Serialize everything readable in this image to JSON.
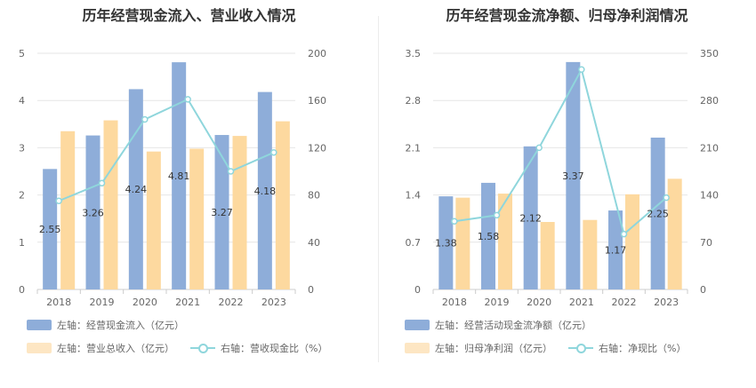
{
  "chart_data": [
    {
      "type": "bar",
      "title": "历年经营现金流入、营业收入情况",
      "categories": [
        "2018",
        "2019",
        "2020",
        "2021",
        "2022",
        "2023"
      ],
      "left_axis": {
        "min": 0,
        "max": 5,
        "ticks": [
          "0",
          "1",
          "2",
          "3",
          "4",
          "5"
        ]
      },
      "right_axis": {
        "min": 0,
        "max": 200,
        "ticks": [
          "0",
          "40",
          "80",
          "120",
          "160",
          "200"
        ]
      },
      "series": [
        {
          "name": "左轴：经营现金流入（亿元）",
          "kind": "bar",
          "axis": "left",
          "color": "#8eadd9",
          "values": [
            2.55,
            3.26,
            4.24,
            4.81,
            3.27,
            4.18
          ],
          "labels": [
            "2.55",
            "3.26",
            "4.24",
            "4.81",
            "3.27",
            "4.18"
          ]
        },
        {
          "name": "左轴：营业总收入（亿元）",
          "kind": "bar",
          "axis": "left",
          "color": "#fdd99f",
          "values": [
            3.35,
            3.58,
            2.92,
            2.98,
            3.25,
            3.56
          ]
        },
        {
          "name": "右轴：营收现金比（%）",
          "kind": "line",
          "axis": "right",
          "color": "#8fd6dc",
          "values": [
            75,
            90,
            144,
            161,
            100,
            116
          ]
        }
      ],
      "grid": true
    },
    {
      "type": "bar",
      "title": "历年经营现金流净额、归母净利润情况",
      "categories": [
        "2018",
        "2019",
        "2020",
        "2021",
        "2022",
        "2023"
      ],
      "left_axis": {
        "min": 0,
        "max": 3.5,
        "ticks": [
          "0",
          "0.7",
          "1.4",
          "2.1",
          "2.8",
          "3.5"
        ]
      },
      "right_axis": {
        "min": 0,
        "max": 350,
        "ticks": [
          "0",
          "70",
          "140",
          "210",
          "280",
          "350"
        ]
      },
      "series": [
        {
          "name": "左轴：经营活动现金流净额（亿元）",
          "kind": "bar",
          "axis": "left",
          "color": "#8eadd9",
          "values": [
            1.38,
            1.58,
            2.12,
            3.37,
            1.17,
            2.25
          ],
          "labels": [
            "1.38",
            "1.58",
            "2.12",
            "3.37",
            "1.17",
            "2.25"
          ]
        },
        {
          "name": "左轴：归母净利润（亿元）",
          "kind": "bar",
          "axis": "left",
          "color": "#fdd99f",
          "values": [
            1.36,
            1.42,
            1.0,
            1.03,
            1.41,
            1.64
          ]
        },
        {
          "name": "右轴：净现比（%）",
          "kind": "line",
          "axis": "right",
          "color": "#8fd6dc",
          "values": [
            101,
            110,
            210,
            326,
            82,
            136
          ]
        }
      ],
      "grid": true
    }
  ]
}
